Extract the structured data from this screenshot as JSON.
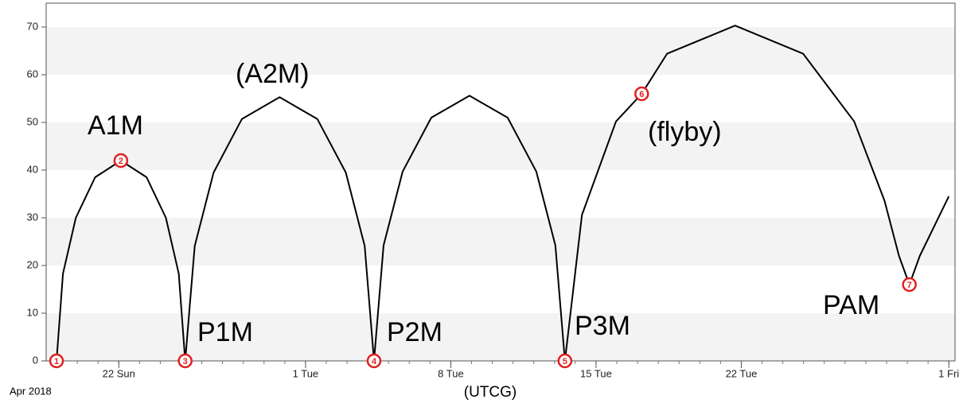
{
  "chart_data": {
    "type": "line",
    "x_label": "(UTCG)",
    "x_caption": "Apr 2018",
    "xlim": [
      -3.5,
      40.3
    ],
    "xticks": [
      {
        "value": 0,
        "label": "22 Sun"
      },
      {
        "value": 9,
        "label": "1 Tue"
      },
      {
        "value": 16,
        "label": "8 Tue"
      },
      {
        "value": 23,
        "label": "15 Tue"
      },
      {
        "value": 30,
        "label": "22 Tue"
      },
      {
        "value": 40,
        "label": "1 Fri"
      }
    ],
    "ylim": [
      0,
      75
    ],
    "yticks": [
      0,
      10,
      20,
      30,
      40,
      50,
      60,
      70
    ],
    "grid": "bands",
    "series": [
      {
        "color": "#000000",
        "x": [
          -3.0,
          -2.69,
          -2.07,
          -1.14,
          0.1,
          1.34,
          2.27,
          2.89,
          3.2,
          3.66,
          4.57,
          5.93,
          7.75,
          9.57,
          10.94,
          11.85,
          12.3,
          12.76,
          13.68,
          15.06,
          16.9,
          18.74,
          20.12,
          21.04,
          21.5,
          22.32,
          23.96,
          25.2,
          26.42,
          29.7,
          32.98,
          35.44,
          36.9,
          37.6,
          38.1,
          38.6,
          40
        ],
        "values": [
          0,
          18.3,
          30,
          38.5,
          42,
          38.5,
          30,
          18.3,
          0,
          24.1,
          39.5,
          50.7,
          55.3,
          50.7,
          39.5,
          24.1,
          0,
          24.2,
          39.7,
          51.0,
          55.6,
          51.0,
          39.7,
          24.2,
          0,
          30.6,
          50.2,
          56,
          64.4,
          70.3,
          64.4,
          50.2,
          33.6,
          22,
          16,
          22,
          34.5
        ]
      }
    ],
    "markers": [
      {
        "label": "1",
        "x": -3.0,
        "y": 0
      },
      {
        "label": "2",
        "x": 0.1,
        "y": 42
      },
      {
        "label": "3",
        "x": 3.2,
        "y": 0
      },
      {
        "label": "4",
        "x": 12.3,
        "y": 0
      },
      {
        "label": "5",
        "x": 21.5,
        "y": 0
      },
      {
        "label": "6",
        "x": 25.2,
        "y": 56
      },
      {
        "label": "7",
        "x": 38.1,
        "y": 16
      }
    ],
    "marker_color": "#e02020",
    "annotations": [
      "A1M",
      "(A2M)",
      "P1M",
      "P2M",
      "P3M",
      "(flyby)",
      "PAM"
    ]
  }
}
